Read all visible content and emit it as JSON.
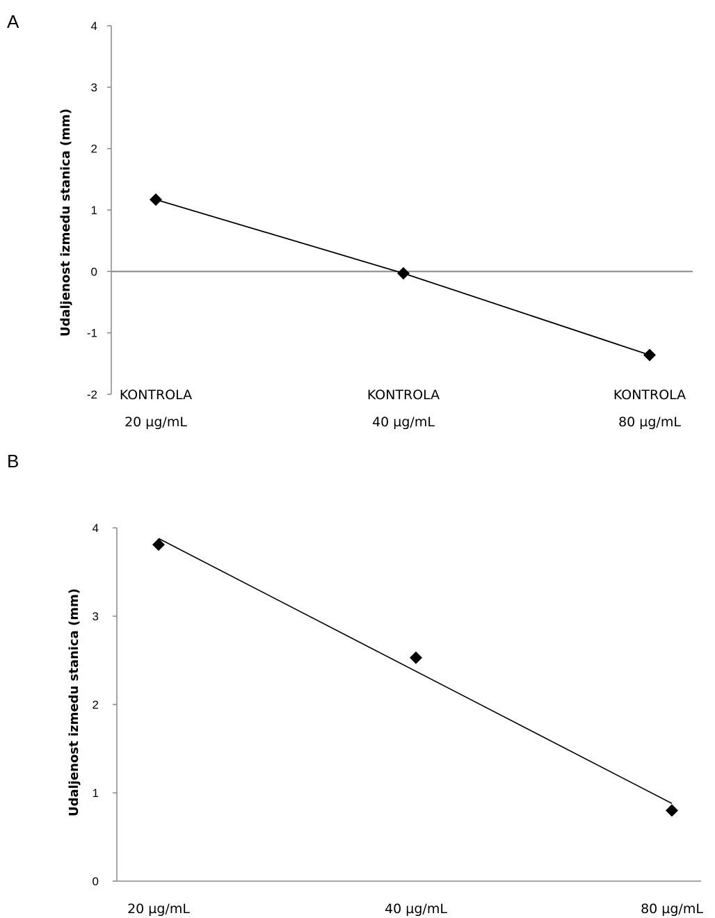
{
  "chart_data": [
    {
      "panel": "A",
      "type": "line",
      "categories": [
        [
          "KONTROLA",
          "20 µg/mL"
        ],
        [
          "KONTROLA",
          "40 µg/mL"
        ],
        [
          "KONTROLA",
          "80 µg/mL"
        ]
      ],
      "values": [
        1.17,
        -0.03,
        -1.36
      ],
      "ylabel": "Udaljenost izmedu stanica (mm)",
      "xlabel": "",
      "ylim": [
        -2,
        4
      ],
      "yticks": [
        4,
        3,
        2,
        1,
        0,
        -1,
        -2
      ],
      "marker": "diamond",
      "colors": {
        "line": "#000000",
        "marker": "#000000",
        "zero_line": "#888888",
        "axis": "#888888"
      }
    },
    {
      "panel": "B",
      "type": "line",
      "categories": [
        [
          "20 µg/mL"
        ],
        [
          "40 µg/mL"
        ],
        [
          "80 µg/mL"
        ]
      ],
      "values": [
        3.81,
        2.53,
        0.8
      ],
      "trendline": [
        3.88,
        0.88
      ],
      "ylabel": "Udaljenost izmedu stanica (mm)",
      "xlabel": "",
      "ylim": [
        0,
        4
      ],
      "yticks": [
        4,
        3,
        2,
        1,
        0
      ],
      "marker": "diamond",
      "colors": {
        "line": "#000000",
        "marker": "#000000",
        "axis": "#888888"
      }
    }
  ]
}
